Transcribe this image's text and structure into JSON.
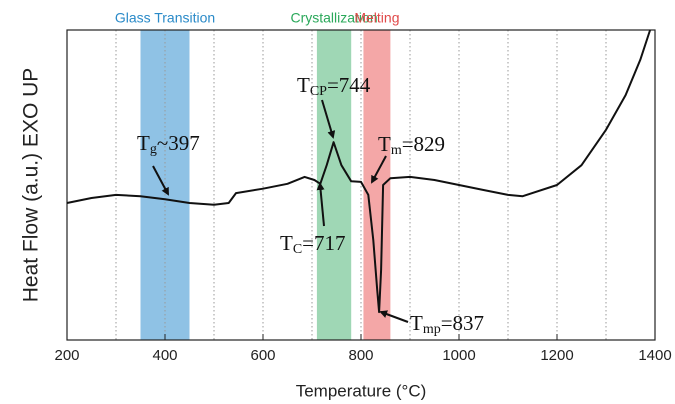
{
  "chart_data": {
    "type": "line",
    "xlabel": "Temperature (°C)",
    "ylabel": "Heat Flow (a.u.) EXO UP",
    "xlim": [
      200,
      1400
    ],
    "xticks": [
      200,
      400,
      600,
      800,
      1000,
      1200,
      1400
    ],
    "x_gridlines": [
      300,
      400,
      500,
      600,
      700,
      800,
      900,
      1000,
      1100,
      1200,
      1300
    ],
    "ylim": [
      0,
      5
    ],
    "x": [
      200,
      250,
      300,
      350,
      400,
      450,
      500,
      530,
      545,
      600,
      650,
      685,
      705,
      717,
      730,
      744,
      760,
      780,
      800,
      815,
      825,
      833,
      837,
      841,
      845,
      860,
      900,
      950,
      1000,
      1050,
      1100,
      1130,
      1200,
      1250,
      1300,
      1340,
      1370,
      1390
    ],
    "series": [
      {
        "color": "#111111",
        "values": [
          2.21,
          2.29,
          2.34,
          2.32,
          2.27,
          2.21,
          2.18,
          2.21,
          2.37,
          2.44,
          2.52,
          2.63,
          2.58,
          2.52,
          2.82,
          3.19,
          2.82,
          2.56,
          2.55,
          2.34,
          1.61,
          0.81,
          0.45,
          1.13,
          2.5,
          2.61,
          2.63,
          2.58,
          2.5,
          2.42,
          2.34,
          2.32,
          2.5,
          2.82,
          3.39,
          3.95,
          4.52,
          5.0
        ]
      }
    ],
    "regions": [
      {
        "label": "Glass Transition",
        "start": 350,
        "end": 450,
        "color": "#6aaedc",
        "label_color": "#2a8ac8"
      },
      {
        "label": "Crystallization",
        "start": 710,
        "end": 780,
        "color": "#7fc99c",
        "label_color": "#2aa85a"
      },
      {
        "label": "Melting",
        "start": 805,
        "end": 860,
        "color": "#f08a8a",
        "label_color": "#e04848"
      }
    ],
    "annotations": [
      {
        "text": "T",
        "sub": "g",
        "suffix": "~397"
      },
      {
        "text": "T",
        "sub": "CP",
        "suffix": "=744"
      },
      {
        "text": "T",
        "sub": "C",
        "suffix": "=717"
      },
      {
        "text": "T",
        "sub": "m",
        "suffix": "=829"
      },
      {
        "text": "T",
        "sub": "mp",
        "suffix": "=837"
      }
    ]
  }
}
